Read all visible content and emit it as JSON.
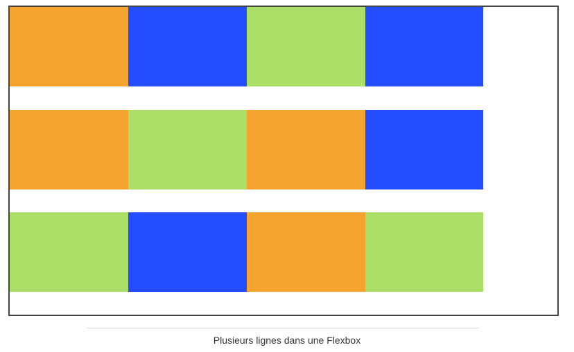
{
  "colors": {
    "orange": "#F5A430",
    "blue": "#234DFF",
    "green": "#ABDF68",
    "border": "#444444"
  },
  "rows": [
    [
      "orange",
      "blue",
      "green",
      "blue"
    ],
    [
      "orange",
      "green",
      "orange",
      "blue"
    ],
    [
      "green",
      "blue",
      "orange",
      "green"
    ]
  ],
  "caption": "Plusieurs lignes dans une Flexbox"
}
